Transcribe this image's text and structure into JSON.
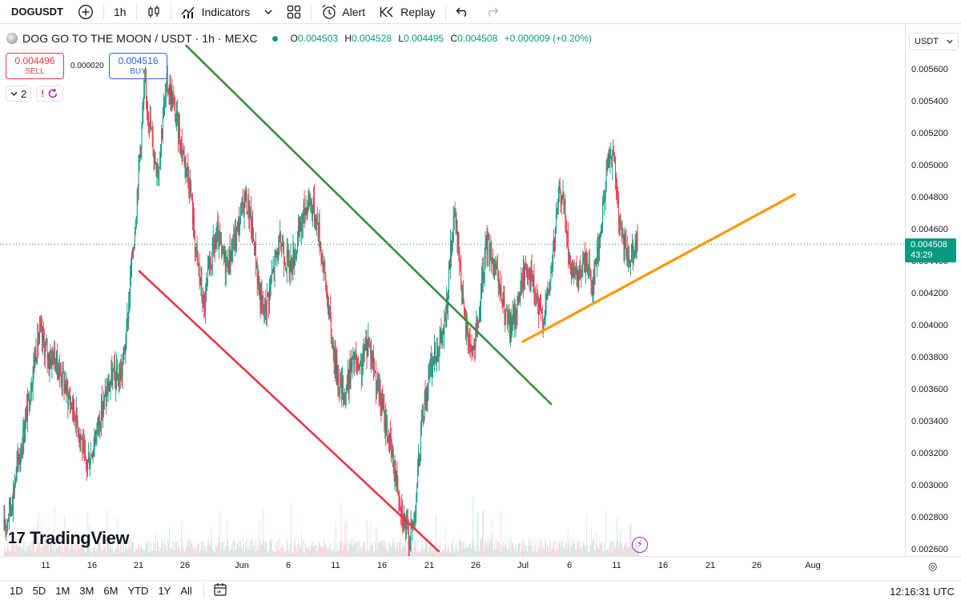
{
  "toolbar": {
    "symbol": "DOGUSDT",
    "interval": "1h",
    "indicators_label": "Indicators",
    "alert_label": "Alert",
    "replay_label": "Replay",
    "icons": [
      "search-icon",
      "plus-circle-icon",
      "candles-icon",
      "indicators-icon",
      "chevron-down-icon",
      "layout-grid-icon",
      "alarm-icon",
      "replay-icon",
      "undo-icon",
      "redo-icon"
    ]
  },
  "legend": {
    "title": "DOG GO TO THE MOON / USDT · 1h · MEXC",
    "o_key": "O",
    "o": "0.004503",
    "h_key": "H",
    "h": "0.004528",
    "l_key": "L",
    "l": "0.004495",
    "c_key": "C",
    "c": "0.004508",
    "change": "+0.000009 (+0.20%)"
  },
  "trade": {
    "sell_price": "0.004496",
    "sell_label": "SELL",
    "spread": "0.000020",
    "buy_price": "0.004516",
    "buy_label": "BUY"
  },
  "indicators_count": "2",
  "price_axis": {
    "currency": "USDT",
    "ticks": [
      "0.005600",
      "0.005400",
      "0.005200",
      "0.005000",
      "0.004800",
      "0.004600",
      "0.004400",
      "0.004200",
      "0.004000",
      "0.003800",
      "0.003600",
      "0.003400",
      "0.003200",
      "0.003000",
      "0.002800",
      "0.002600"
    ],
    "last_price": "0.004508",
    "countdown": "43:29"
  },
  "time_axis": {
    "ticks": [
      "11",
      "16",
      "21",
      "26",
      "Jun",
      "6",
      "11",
      "16",
      "21",
      "26",
      "Jul",
      "6",
      "11",
      "16",
      "21",
      "26",
      "Aug"
    ]
  },
  "bottom_bar": {
    "ranges": [
      "1D",
      "5D",
      "1M",
      "3M",
      "6M",
      "YTD",
      "1Y",
      "All"
    ],
    "clock": "12:16:31 UTC"
  },
  "branding": "TradingView",
  "colors": {
    "up": "#089981",
    "down": "#f23645",
    "green_line": "#388e3c",
    "red_line": "#e53946",
    "orange_line": "#ff9800"
  },
  "chart_data": {
    "type": "line",
    "series": [
      {
        "values": [
          0.00272,
          0.00281,
          0.00293,
          0.00311,
          0.00325,
          0.00343,
          0.00362,
          0.00383,
          0.00395,
          0.00387,
          0.00379,
          0.00382,
          0.00374,
          0.00368,
          0.00358,
          0.00351,
          0.00342,
          0.00331,
          0.00312,
          0.00318,
          0.00329,
          0.00341,
          0.00352,
          0.00361,
          0.00369,
          0.00366,
          0.00372,
          0.00395,
          0.00433,
          0.00468,
          0.00512,
          0.00548,
          0.00531,
          0.00508,
          0.00498,
          0.00532,
          0.00551,
          0.00542,
          0.00528,
          0.00513,
          0.00502,
          0.00487,
          0.00452,
          0.00431,
          0.0041,
          0.00432,
          0.00448,
          0.00455,
          0.00443,
          0.00439,
          0.00446,
          0.00457,
          0.00468,
          0.00481,
          0.00469,
          0.00451,
          0.00423,
          0.00408,
          0.00418,
          0.00432,
          0.00446,
          0.00452,
          0.00441,
          0.00438,
          0.00447,
          0.00459,
          0.00472,
          0.0048,
          0.00473,
          0.00462,
          0.00441,
          0.00418,
          0.00392,
          0.00373,
          0.00361,
          0.00358,
          0.00372,
          0.00379,
          0.00368,
          0.00381,
          0.00392,
          0.00378,
          0.00362,
          0.00349,
          0.00337,
          0.00321,
          0.00307,
          0.00292,
          0.00276,
          0.00266,
          0.00279,
          0.00312,
          0.00348,
          0.00362,
          0.00377,
          0.00385,
          0.00391,
          0.00404,
          0.00445,
          0.00468,
          0.00442,
          0.00403,
          0.00392,
          0.00385,
          0.00398,
          0.00428,
          0.00452,
          0.00446,
          0.00431,
          0.00419,
          0.00408,
          0.00397,
          0.00406,
          0.00418,
          0.00432,
          0.00438,
          0.00426,
          0.00413,
          0.00405,
          0.00414,
          0.00432,
          0.00459,
          0.00488,
          0.00472,
          0.00441,
          0.00428,
          0.00429,
          0.00438,
          0.00441,
          0.00425,
          0.00442,
          0.00461,
          0.00489,
          0.00512,
          0.00498,
          0.00463,
          0.00449,
          0.00442,
          0.00451,
          0.0045
        ]
      }
    ],
    "ylim": [
      0.00259,
      0.00575
    ],
    "drawings": [
      {
        "name": "green-trendline",
        "from": [
          "May 26",
          0.00575
        ],
        "to": [
          "Jul 4",
          0.00351
        ]
      },
      {
        "name": "red-trendline",
        "from": [
          "May 21",
          0.00434
        ],
        "to": [
          "Jun 22",
          0.00259
        ]
      },
      {
        "name": "orange-trendline",
        "from": [
          "Jul 1",
          0.0039
        ],
        "to": [
          "Jul 30",
          0.00482
        ]
      }
    ]
  }
}
